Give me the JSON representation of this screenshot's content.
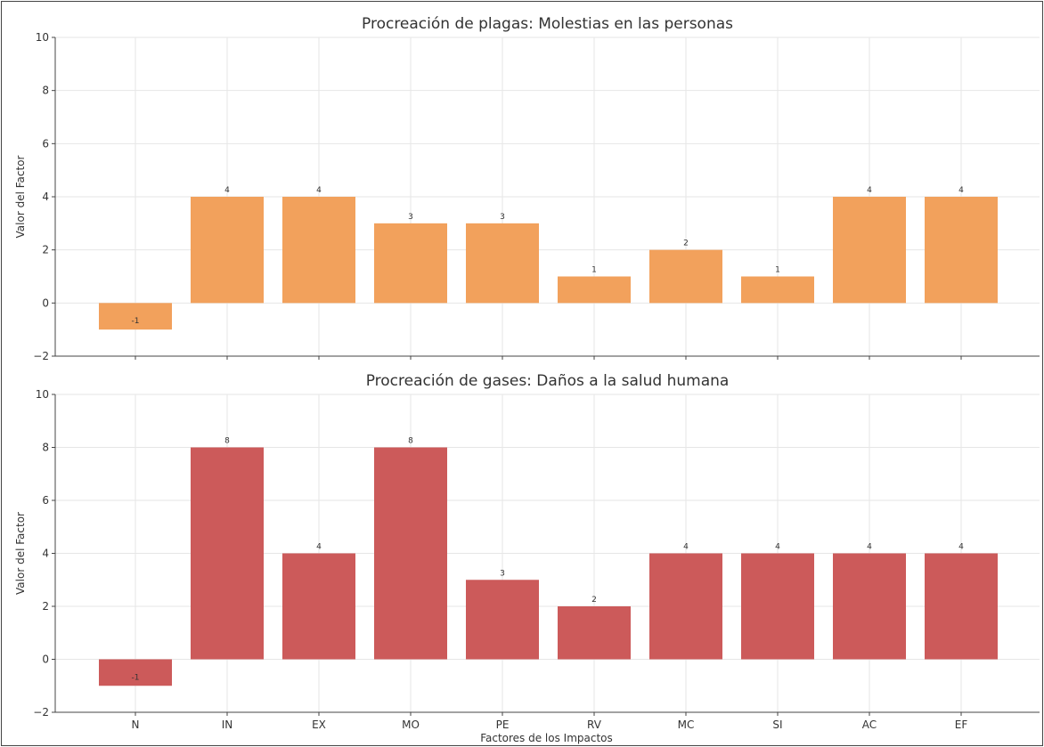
{
  "chart_data": [
    {
      "type": "bar",
      "title": "Procreación de plagas: Molestias en las personas",
      "xlabel": "",
      "ylabel": "Valor del Factor",
      "ylim": [
        -2,
        10
      ],
      "yticks": [
        -2,
        0,
        2,
        4,
        6,
        8,
        10
      ],
      "categories": [
        "N",
        "IN",
        "EX",
        "MO",
        "PE",
        "RV",
        "MC",
        "SI",
        "AC",
        "EF"
      ],
      "values": [
        -1,
        4,
        4,
        3,
        3,
        1,
        2,
        1,
        4,
        4
      ],
      "color": "#f2a15c",
      "grid": true
    },
    {
      "type": "bar",
      "title": "Procreación de gases: Daños a la salud humana",
      "xlabel": "Factores de los Impactos",
      "ylabel": "Valor del Factor",
      "ylim": [
        -2,
        10
      ],
      "yticks": [
        -2,
        0,
        2,
        4,
        6,
        8,
        10
      ],
      "categories": [
        "N",
        "IN",
        "EX",
        "MO",
        "PE",
        "RV",
        "MC",
        "SI",
        "AC",
        "EF"
      ],
      "values": [
        -1,
        8,
        4,
        8,
        3,
        2,
        4,
        4,
        4,
        4
      ],
      "color": "#cc5a5a",
      "grid": true
    }
  ]
}
